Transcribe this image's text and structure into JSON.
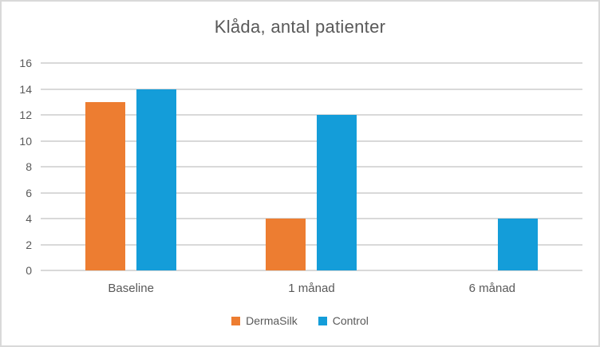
{
  "chart_data": {
    "type": "bar",
    "title": "Klåda, antal patienter",
    "categories": [
      "Baseline",
      "1 månad",
      "6 månad"
    ],
    "series": [
      {
        "name": "DermaSilk",
        "color": "#ED7D31",
        "values": [
          13,
          4,
          0
        ]
      },
      {
        "name": "Control",
        "color": "#149DD9",
        "values": [
          14,
          12,
          4
        ]
      }
    ],
    "xlabel": "",
    "ylabel": "",
    "ylim": [
      0,
      16
    ],
    "yticks": [
      0,
      2,
      4,
      6,
      8,
      10,
      12,
      14,
      16
    ],
    "grid": "horizontal",
    "legend_position": "bottom",
    "colors": {
      "text": "#595959",
      "gridline": "#D9D9D9",
      "border": "#D9D9D9",
      "background": "#FFFFFF"
    }
  }
}
